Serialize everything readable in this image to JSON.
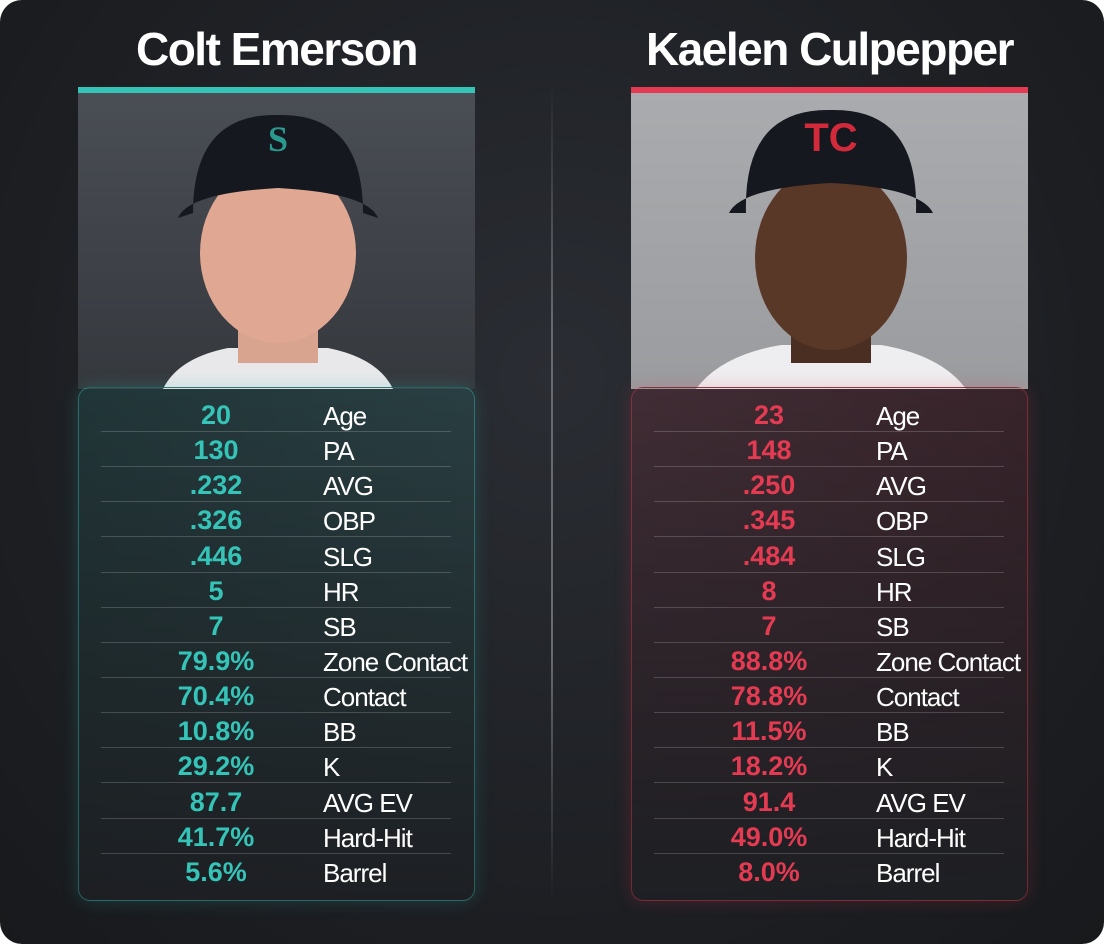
{
  "players": [
    {
      "name": "Colt Emerson",
      "color": "#35c4b8",
      "stats": [
        {
          "value": "20",
          "label": "Age"
        },
        {
          "value": "130",
          "label": "PA"
        },
        {
          "value": ".232",
          "label": "AVG"
        },
        {
          "value": ".326",
          "label": "OBP"
        },
        {
          "value": ".446",
          "label": "SLG"
        },
        {
          "value": "5",
          "label": "HR"
        },
        {
          "value": "7",
          "label": "SB"
        },
        {
          "value": "79.9%",
          "label": "Zone Contact"
        },
        {
          "value": "70.4%",
          "label": "Contact"
        },
        {
          "value": "10.8%",
          "label": "BB"
        },
        {
          "value": "29.2%",
          "label": "K"
        },
        {
          "value": "87.7",
          "label": "AVG EV"
        },
        {
          "value": "41.7%",
          "label": "Hard-Hit"
        },
        {
          "value": "5.6%",
          "label": "Barrel"
        }
      ]
    },
    {
      "name": "Kaelen Culpepper",
      "color": "#e53b52",
      "stats": [
        {
          "value": "23",
          "label": "Age"
        },
        {
          "value": "148",
          "label": "PA"
        },
        {
          "value": ".250",
          "label": "AVG"
        },
        {
          "value": ".345",
          "label": "OBP"
        },
        {
          "value": ".484",
          "label": "SLG"
        },
        {
          "value": "8",
          "label": "HR"
        },
        {
          "value": "7",
          "label": "SB"
        },
        {
          "value": "88.8%",
          "label": "Zone Contact"
        },
        {
          "value": "78.8%",
          "label": "Contact"
        },
        {
          "value": "11.5%",
          "label": "BB"
        },
        {
          "value": "18.2%",
          "label": "K"
        },
        {
          "value": "91.4",
          "label": "AVG EV"
        },
        {
          "value": "49.0%",
          "label": "Hard-Hit"
        },
        {
          "value": "8.0%",
          "label": "Barrel"
        }
      ]
    }
  ]
}
